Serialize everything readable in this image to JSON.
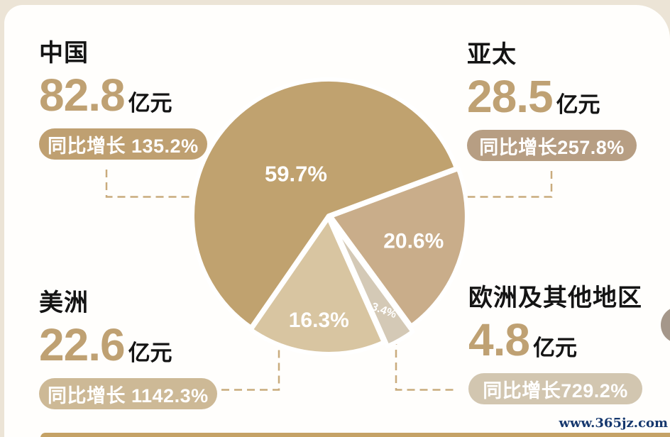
{
  "watermark": "www.365jz.com",
  "unit_label": "亿元",
  "regions": [
    {
      "name": "中国",
      "value": "82.8",
      "unit": "亿元",
      "growth": "同比增长 135.2%",
      "badge_color": "#bfa071"
    },
    {
      "name": "亚太",
      "value": "28.5",
      "unit": "亿元",
      "growth": "同比增长257.8%",
      "badge_color": "#b79e83"
    },
    {
      "name": "美洲",
      "value": "22.6",
      "unit": "亿元",
      "growth": "同比增长 1142.3%",
      "badge_color": "#cdb996"
    },
    {
      "name": "欧洲及其他地区",
      "value": "4.8",
      "unit": "亿元",
      "growth": "同比增长729.2%",
      "badge_color": "#d2c6b0"
    }
  ],
  "chart_data": {
    "type": "pie",
    "title": "",
    "legend": "none",
    "categories": [
      "中国",
      "亚太",
      "欧洲及其他地区",
      "美洲"
    ],
    "values": [
      59.7,
      20.6,
      3.4,
      16.3
    ],
    "revenues_yi_yuan": [
      82.8,
      28.5,
      4.8,
      22.6
    ],
    "yoy_growth_pct": [
      135.2,
      257.8,
      729.2,
      1142.3
    ],
    "start_angle_deg": 20.4,
    "direction": "clockwise",
    "slices": [
      {
        "label": "亚太",
        "pct": 20.6,
        "share_label": "20.6%",
        "color": "#c9ad8a",
        "explode": 3,
        "label_r": 122,
        "label_size": 30,
        "label_rot": 0
      },
      {
        "label": "欧洲及其他地区",
        "pct": 3.4,
        "share_label": "3.4%",
        "color": "#d4c9b6",
        "explode": 10,
        "label_r": 145,
        "label_size": 16,
        "label_rot": 20
      },
      {
        "label": "美洲",
        "pct": 16.3,
        "share_label": "16.3%",
        "color": "#d8c5a1",
        "explode": 3,
        "label_r": 145,
        "label_size": 30,
        "label_rot": 0
      },
      {
        "label": "中国",
        "pct": 59.7,
        "share_label": "59.7%",
        "color": "#c0a26f",
        "explode": 0,
        "label_r": 75,
        "label_size": 31,
        "label_rot": 0
      }
    ]
  },
  "colors": {
    "background": "#ece4d6",
    "card": "#fffefc",
    "accent_gold": "#bfa173",
    "title_text": "#141414",
    "connector": "#c9ab7d",
    "watermark": "#16386e",
    "bottom_band": "#c5a266",
    "side_dot": "#a5978a",
    "slice_stroke": "#ffffff"
  }
}
